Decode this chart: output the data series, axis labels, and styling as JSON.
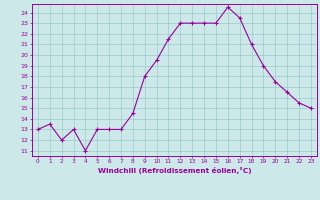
{
  "x": [
    0,
    1,
    2,
    3,
    4,
    5,
    6,
    7,
    8,
    9,
    10,
    11,
    12,
    13,
    14,
    15,
    16,
    17,
    18,
    19,
    20,
    21,
    22,
    23
  ],
  "y": [
    13,
    13.5,
    12,
    13,
    11,
    13,
    13,
    13,
    14.5,
    18,
    19.5,
    21.5,
    23,
    23,
    23,
    23,
    24.5,
    23.5,
    21,
    19,
    17.5,
    16.5,
    15.5,
    15
  ],
  "xlabel": "Windchill (Refroidissement éolien,°C)",
  "ylim": [
    11,
    24.5
  ],
  "xlim": [
    -0.5,
    23.5
  ],
  "yticks": [
    11,
    12,
    13,
    14,
    15,
    16,
    17,
    18,
    19,
    20,
    21,
    22,
    23,
    24
  ],
  "xticks": [
    0,
    1,
    2,
    3,
    4,
    5,
    6,
    7,
    8,
    9,
    10,
    11,
    12,
    13,
    14,
    15,
    16,
    17,
    18,
    19,
    20,
    21,
    22,
    23
  ],
  "line_color": "#990099",
  "marker": "+",
  "bg_color": "#cce8e8",
  "grid_color": "#99cccc",
  "axis_color": "#990099",
  "tick_color": "#990099",
  "label_color": "#990099"
}
